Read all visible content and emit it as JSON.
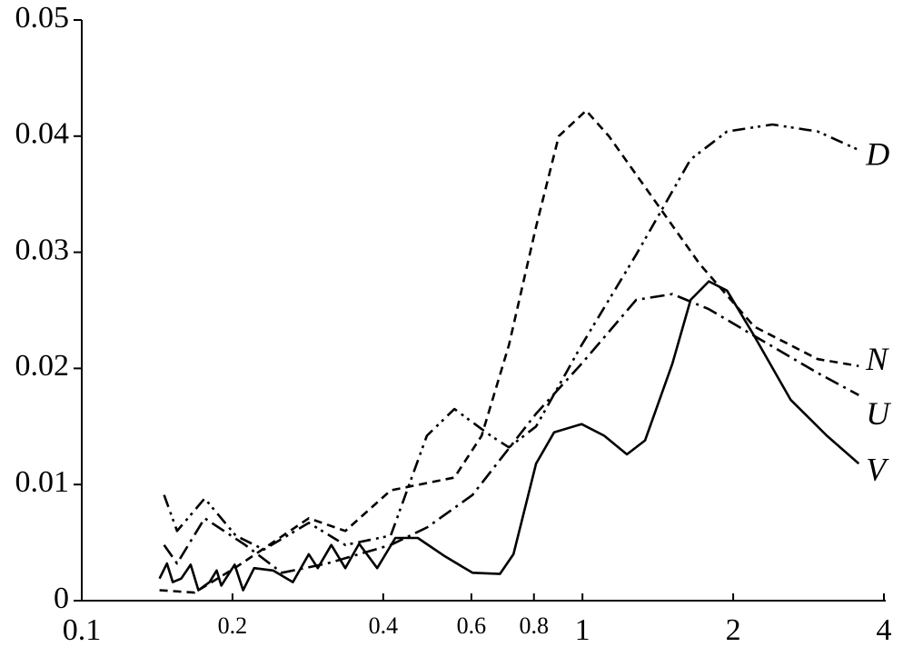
{
  "chart_data": {
    "type": "line",
    "xscale": "log",
    "xlim": [
      0.1,
      4
    ],
    "xticks": [
      0.1,
      0.2,
      0.4,
      0.6,
      0.8,
      1,
      2,
      4
    ],
    "ylim": [
      0,
      0.05
    ],
    "yticks": [
      0,
      0.01,
      0.02,
      0.03,
      0.04,
      0.05
    ],
    "series": [
      {
        "name": "D",
        "color": "#000000",
        "dash": "14 6 3 5 3 6",
        "x": [
          0.146,
          0.155,
          0.176,
          0.203,
          0.231,
          0.284,
          0.336,
          0.414,
          0.489,
          0.555,
          0.656,
          0.713,
          0.808,
          0.996,
          1.28,
          1.644,
          1.944,
          2.395,
          2.951,
          3.563
        ],
        "values": [
          0.0091,
          0.006,
          0.0088,
          0.0056,
          0.0044,
          0.0067,
          0.0048,
          0.0056,
          0.0142,
          0.0165,
          0.0142,
          0.0132,
          0.015,
          0.022,
          0.0298,
          0.038,
          0.0404,
          0.041,
          0.0404,
          0.0388
        ]
      },
      {
        "name": "N",
        "color": "#000000",
        "dash": "9 6",
        "x": [
          0.143,
          0.168,
          0.202,
          0.284,
          0.336,
          0.414,
          0.555,
          0.629,
          0.713,
          0.808,
          0.897,
          1.017,
          1.129,
          1.391,
          1.714,
          2.203,
          2.951,
          3.563
        ],
        "values": [
          0.0009,
          0.0007,
          0.0028,
          0.0071,
          0.006,
          0.0095,
          0.0106,
          0.0142,
          0.022,
          0.0322,
          0.04,
          0.0422,
          0.04,
          0.0345,
          0.029,
          0.0236,
          0.0208,
          0.0202
        ]
      },
      {
        "name": "U",
        "color": "#000000",
        "dash": "16 6 3 6",
        "x": [
          0.146,
          0.155,
          0.176,
          0.212,
          0.251,
          0.309,
          0.414,
          0.489,
          0.603,
          0.808,
          0.996,
          1.28,
          1.512,
          1.788,
          2.203,
          2.951,
          3.563
        ],
        "values": [
          0.0048,
          0.0032,
          0.0071,
          0.0048,
          0.0024,
          0.0032,
          0.0048,
          0.0063,
          0.0091,
          0.0161,
          0.0204,
          0.0259,
          0.0264,
          0.0251,
          0.0228,
          0.0196,
          0.0177
        ]
      },
      {
        "name": "V",
        "color": "#000000",
        "dash": "none",
        "x": [
          0.143,
          0.148,
          0.152,
          0.158,
          0.165,
          0.171,
          0.18,
          0.186,
          0.19,
          0.202,
          0.21,
          0.221,
          0.241,
          0.264,
          0.284,
          0.296,
          0.315,
          0.336,
          0.358,
          0.389,
          0.423,
          0.469,
          0.532,
          0.603,
          0.684,
          0.728,
          0.808,
          0.878,
          0.996,
          1.105,
          1.227,
          1.334,
          1.512,
          1.644,
          1.788,
          1.944,
          2.203,
          2.604,
          3.077,
          3.563
        ],
        "values": [
          0.0019,
          0.0032,
          0.0016,
          0.0019,
          0.0031,
          0.0009,
          0.0016,
          0.0026,
          0.0013,
          0.0031,
          0.0009,
          0.0028,
          0.0026,
          0.0016,
          0.004,
          0.0028,
          0.0048,
          0.0028,
          0.0049,
          0.0028,
          0.0054,
          0.0054,
          0.0038,
          0.0024,
          0.0023,
          0.004,
          0.0118,
          0.0145,
          0.0152,
          0.0142,
          0.0126,
          0.0138,
          0.0204,
          0.0259,
          0.0275,
          0.0267,
          0.0228,
          0.0173,
          0.0142,
          0.0118
        ]
      }
    ]
  }
}
